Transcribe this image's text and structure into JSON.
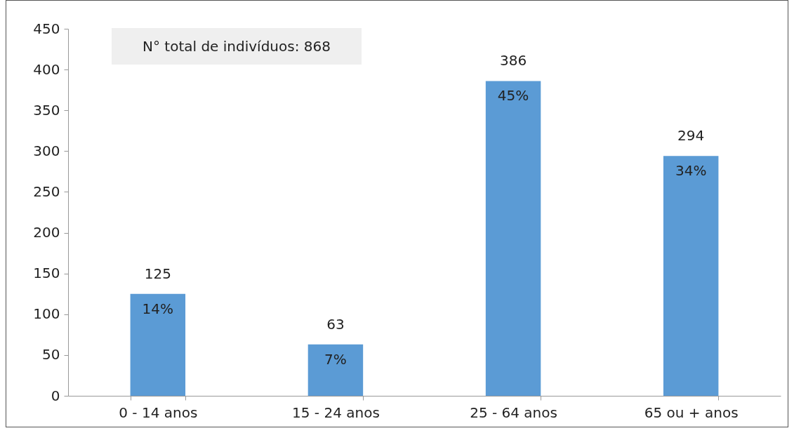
{
  "chart_data": {
    "type": "bar",
    "categories": [
      "0 - 14 anos",
      "15 - 24 anos",
      "25 - 64 anos",
      "65 ou + anos"
    ],
    "values": [
      125,
      63,
      386,
      294
    ],
    "value_labels": [
      "125",
      "63",
      "386",
      "294"
    ],
    "color": "#5b9bd5",
    "ylim": [
      0,
      450
    ],
    "yticks": [
      0,
      50,
      100,
      150,
      200,
      250,
      300,
      350,
      400,
      450
    ],
    "grid": false,
    "annotations": [
      "N° total de indivíduos: 868",
      {
        "text": "14%",
        "x": "0 - 14 anos",
        "y": 125
      },
      {
        "text": "7%",
        "x": "15 - 24 anos",
        "y": 63
      },
      {
        "text": "45%",
        "x": "25 - 64 anos",
        "y": 386
      },
      {
        "text": "34%",
        "x": "65 ou + anos",
        "y": 294
      }
    ]
  }
}
